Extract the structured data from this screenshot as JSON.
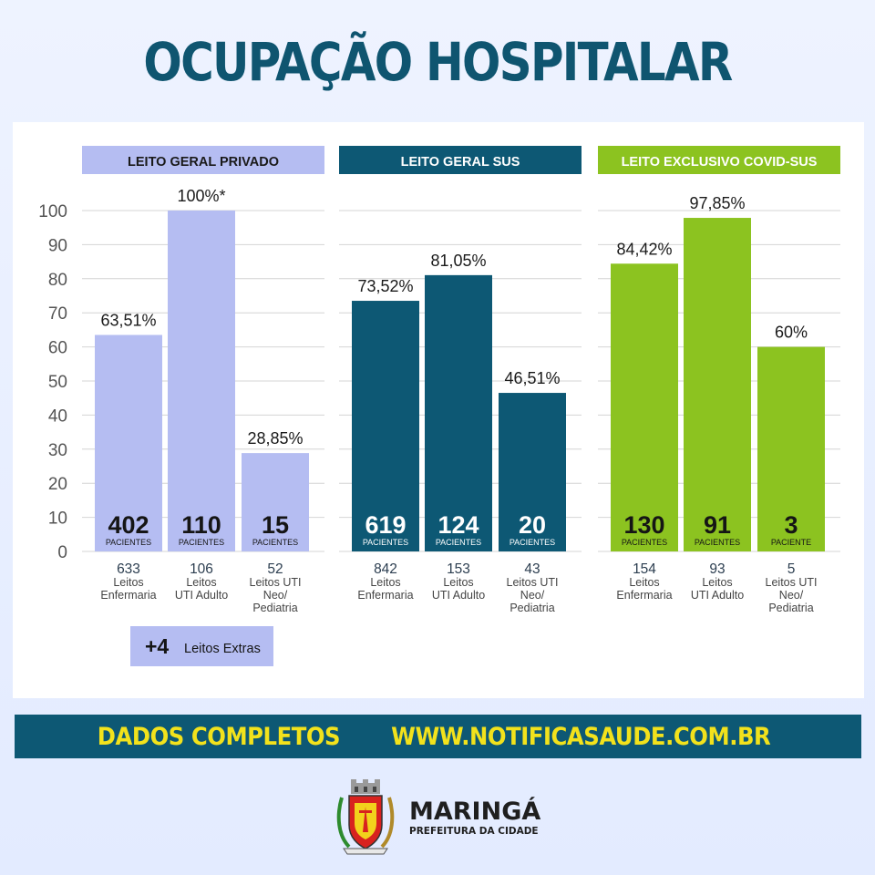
{
  "title": "OCUPAÇÃO HOSPITALAR",
  "colors": {
    "privado": "#b5bdf2",
    "sus": "#0d5874",
    "covid": "#8cc320",
    "title": "#0f5570",
    "banner_bg": "#0d5874",
    "banner_text": "#f2e21c"
  },
  "chart_data": [
    {
      "type": "bar",
      "title": "LEITO GERAL PRIVADO",
      "categories": [
        "Leitos Enfermaria",
        "Leitos UTI Adulto",
        "Leitos UTI Neo/ Pediatria"
      ],
      "values": [
        63.51,
        100,
        28.85
      ],
      "value_labels": [
        "63,51%",
        "100%*",
        "28,85%"
      ],
      "patients": [
        "402",
        "110",
        "15"
      ],
      "patients_label": [
        "PACIENTES",
        "PACIENTES",
        "PACIENTES"
      ],
      "beds": [
        "633",
        "106",
        "52"
      ],
      "bed_labels": [
        [
          "Leitos",
          "Enfermaria"
        ],
        [
          "Leitos",
          "UTI Adulto"
        ],
        [
          "Leitos UTI",
          "Neo/",
          "Pediatria"
        ]
      ],
      "ylim": [
        0,
        100
      ],
      "y_ticks": [
        "0",
        "10",
        "20",
        "30",
        "40",
        "50",
        "60",
        "70",
        "80",
        "90",
        "100"
      ],
      "grid": true
    },
    {
      "type": "bar",
      "title": "LEITO GERAL SUS",
      "categories": [
        "Leitos Enfermaria",
        "Leitos UTI Adulto",
        "Leitos UTI Neo/ Pediatria"
      ],
      "values": [
        73.52,
        81.05,
        46.51
      ],
      "value_labels": [
        "73,52%",
        "81,05%",
        "46,51%"
      ],
      "patients": [
        "619",
        "124",
        "20"
      ],
      "patients_label": [
        "PACIENTES",
        "PACIENTES",
        "PACIENTES"
      ],
      "beds": [
        "842",
        "153",
        "43"
      ],
      "bed_labels": [
        [
          "Leitos",
          "Enfermaria"
        ],
        [
          "Leitos",
          "UTI Adulto"
        ],
        [
          "Leitos UTI",
          "Neo/",
          "Pediatria"
        ]
      ],
      "ylim": [
        0,
        100
      ],
      "grid": true
    },
    {
      "type": "bar",
      "title": "LEITO EXCLUSIVO COVID-SUS",
      "categories": [
        "Leitos Enfermaria",
        "Leitos UTI Adulto",
        "Leitos UTI Neo/ Pediatria"
      ],
      "values": [
        84.42,
        97.85,
        60
      ],
      "value_labels": [
        "84,42%",
        "97,85%",
        "60%"
      ],
      "patients": [
        "130",
        "91",
        "3"
      ],
      "patients_label": [
        "PACIENTES",
        "PACIENTES",
        "PACIENTE"
      ],
      "beds": [
        "154",
        "93",
        "5"
      ],
      "bed_labels": [
        [
          "Leitos",
          "Enfermaria"
        ],
        [
          "Leitos",
          "UTI Adulto"
        ],
        [
          "Leitos UTI",
          "Neo/",
          "Pediatria"
        ]
      ],
      "ylim": [
        0,
        100
      ],
      "grid": true
    }
  ],
  "extras": {
    "count": "+4",
    "label": "Leitos Extras"
  },
  "banner": {
    "left": "DADOS COMPLETOS",
    "right": "WWW.NOTIFICASAUDE.COM.BR"
  },
  "footer": {
    "city": "MARINGÁ",
    "subtitle": "PREFEITURA DA CIDADE"
  }
}
